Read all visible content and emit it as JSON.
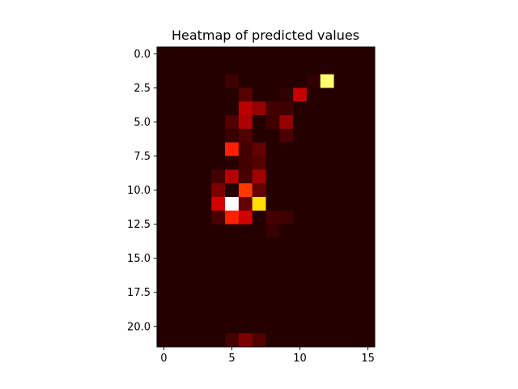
{
  "chart_data": {
    "type": "heatmap",
    "title": "Heatmap of predicted values",
    "xlabel": "",
    "ylabel": "",
    "n_cols": 16,
    "n_rows": 22,
    "x_ticks": [
      0,
      5,
      10,
      15
    ],
    "x_tick_labels": [
      "0",
      "5",
      "10",
      "15"
    ],
    "y_ticks": [
      0.0,
      2.5,
      5.0,
      7.5,
      10.0,
      12.5,
      15.0,
      17.5,
      20.0
    ],
    "y_tick_labels": [
      "0.0",
      "2.5",
      "5.0",
      "7.5",
      "10.0",
      "12.5",
      "15.0",
      "17.5",
      "20.0"
    ],
    "colormap": "hot",
    "value_range": [
      0,
      1
    ],
    "grid": false,
    "values": [
      [
        0,
        0,
        0,
        0,
        0,
        0,
        0,
        0,
        0,
        0,
        0,
        0,
        0,
        0,
        0,
        0
      ],
      [
        0,
        0,
        0,
        0,
        0,
        0,
        0,
        0,
        0,
        0,
        0,
        0,
        0,
        0,
        0,
        0
      ],
      [
        0,
        0,
        0,
        0,
        0,
        0.04,
        0,
        0,
        0,
        0,
        0,
        0.02,
        0.86,
        0,
        0,
        0
      ],
      [
        0,
        0,
        0,
        0,
        0,
        0,
        0.08,
        0,
        0,
        0.02,
        0.26,
        0,
        0,
        0,
        0,
        0
      ],
      [
        0,
        0,
        0,
        0,
        0,
        0,
        0.24,
        0.18,
        0.05,
        0.04,
        0,
        0,
        0,
        0,
        0,
        0
      ],
      [
        0,
        0,
        0,
        0,
        0,
        0.07,
        0.22,
        0,
        0.04,
        0.18,
        0,
        0,
        0,
        0,
        0,
        0
      ],
      [
        0,
        0,
        0,
        0,
        0,
        0.03,
        0.07,
        0,
        0,
        0.06,
        0,
        0,
        0,
        0,
        0,
        0
      ],
      [
        0,
        0,
        0,
        0,
        0,
        0.4,
        0.05,
        0.1,
        0,
        0,
        0,
        0,
        0,
        0,
        0,
        0
      ],
      [
        0,
        0,
        0,
        0,
        0,
        0,
        0.05,
        0.08,
        0,
        0,
        0,
        0,
        0,
        0,
        0,
        0
      ],
      [
        0,
        0,
        0,
        0,
        0.05,
        0.23,
        0.05,
        0.2,
        0,
        0,
        0,
        0,
        0,
        0,
        0,
        0
      ],
      [
        0,
        0,
        0,
        0,
        0.14,
        0,
        0.44,
        0.1,
        0,
        0,
        0,
        0,
        0,
        0,
        0,
        0
      ],
      [
        0,
        0,
        0,
        0,
        0.28,
        1.0,
        0.1,
        0.7,
        0,
        0,
        0,
        0,
        0,
        0,
        0,
        0
      ],
      [
        0,
        0,
        0,
        0,
        0.06,
        0.4,
        0.28,
        0,
        0.05,
        0.04,
        0,
        0,
        0,
        0,
        0,
        0
      ],
      [
        0,
        0,
        0,
        0,
        0,
        0,
        0,
        0,
        0.03,
        0,
        0,
        0,
        0,
        0,
        0,
        0
      ],
      [
        0,
        0,
        0,
        0,
        0,
        0,
        0,
        0,
        0,
        0,
        0,
        0,
        0,
        0,
        0,
        0
      ],
      [
        0,
        0,
        0,
        0,
        0,
        0,
        0,
        0,
        0,
        0,
        0,
        0,
        0,
        0,
        0,
        0
      ],
      [
        0,
        0,
        0,
        0,
        0,
        0,
        0,
        0,
        0,
        0,
        0,
        0,
        0,
        0,
        0,
        0
      ],
      [
        0,
        0,
        0,
        0,
        0,
        0,
        0,
        0,
        0,
        0,
        0,
        0,
        0,
        0,
        0,
        0
      ],
      [
        0,
        0,
        0,
        0,
        0,
        0,
        0,
        0,
        0,
        0,
        0,
        0,
        0,
        0,
        0,
        0
      ],
      [
        0,
        0,
        0,
        0,
        0,
        0,
        0,
        0,
        0,
        0,
        0,
        0,
        0,
        0,
        0,
        0
      ],
      [
        0,
        0,
        0,
        0,
        0,
        0,
        0,
        0,
        0,
        0,
        0,
        0,
        0,
        0,
        0,
        0
      ],
      [
        0,
        0,
        0,
        0,
        0,
        0.05,
        0.14,
        0.07,
        0,
        0,
        0,
        0,
        0,
        0,
        0,
        0
      ]
    ]
  }
}
